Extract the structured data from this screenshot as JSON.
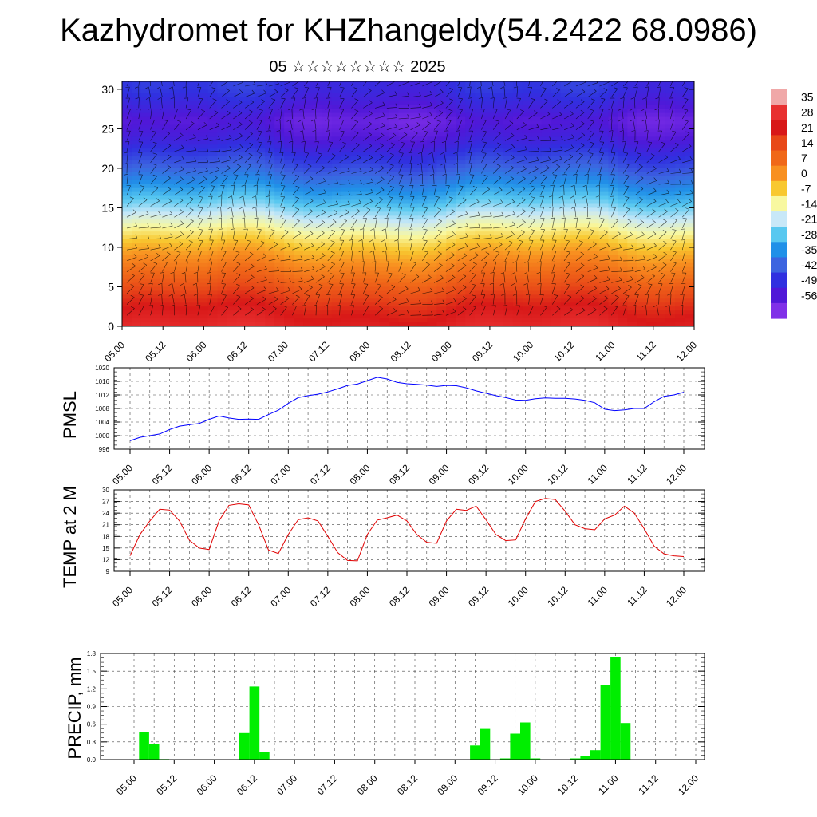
{
  "title": "Kazhydromet for KHZhangeldy(54.2422 68.0986)",
  "subtitle": "05 ☆☆☆☆☆☆☆☆ 2025",
  "colorbar": {
    "labels": [
      "35",
      "28",
      "21",
      "14",
      "7",
      "0",
      "-7",
      "-14",
      "-21",
      "-28",
      "-35",
      "-42",
      "-49",
      "-56"
    ],
    "colors": [
      "#f0a8a8",
      "#e83030",
      "#d81818",
      "#e84818",
      "#f06818",
      "#f89020",
      "#f8c830",
      "#f8f8a0",
      "#c8e8f8",
      "#58c8f0",
      "#2090e8",
      "#3c64e0",
      "#3030e0",
      "#5018d8",
      "#8030e8"
    ]
  },
  "chart_data": [
    {
      "type": "heatmap",
      "name": "upper-air",
      "title": "",
      "xlabel": "",
      "ylabel": "",
      "x_ticks": [
        "05.00",
        "05.12",
        "06.00",
        "06.12",
        "07.00",
        "07.12",
        "08.00",
        "08.12",
        "09.00",
        "09.12",
        "10.00",
        "10.12",
        "11.00",
        "11.12",
        "12.00"
      ],
      "y_ticks": [
        0,
        5,
        10,
        15,
        20,
        25,
        30
      ],
      "ylim": [
        0,
        31
      ],
      "levels": [
        0,
        2,
        4,
        6,
        8,
        10,
        12,
        14,
        16,
        18,
        20,
        22,
        24,
        26,
        28,
        30
      ],
      "profile": [
        28,
        24,
        18,
        11,
        5,
        -2,
        -10,
        -18,
        -26,
        -33,
        -40,
        -46,
        -52,
        -55,
        -50,
        -46
      ]
    },
    {
      "type": "line",
      "name": "pmsl",
      "ylabel": "PMSL",
      "ylim": [
        996,
        1020
      ],
      "y_ticks": [
        996,
        1000,
        1004,
        1008,
        1012,
        1016,
        1020
      ],
      "x_ticks": [
        "05.00",
        "05.12",
        "06.00",
        "06.12",
        "07.00",
        "07.12",
        "08.00",
        "08.12",
        "09.00",
        "09.12",
        "10.00",
        "10.12",
        "11.00",
        "11.12",
        "12.00"
      ],
      "color": "#0000ff",
      "x": [
        0,
        3,
        6,
        9,
        12,
        15,
        18,
        21,
        24,
        27,
        30,
        33,
        36,
        39,
        42,
        45,
        48,
        51,
        54,
        57,
        60,
        63,
        66,
        69,
        72,
        75,
        78,
        81,
        84,
        87,
        90,
        93,
        96,
        99,
        102,
        105,
        108,
        111,
        114,
        117,
        120,
        123,
        126,
        129,
        132,
        135,
        138,
        141,
        144,
        147,
        150,
        153,
        156,
        159,
        162,
        165,
        168
      ],
      "values": [
        998.5,
        999.5,
        1000,
        1000.5,
        1001.8,
        1002.8,
        1003.2,
        1003.6,
        1004.8,
        1005.8,
        1005.2,
        1004.8,
        1004.9,
        1004.8,
        1006.2,
        1007.5,
        1009.5,
        1011.2,
        1011.8,
        1012.2,
        1012.9,
        1013.8,
        1014.8,
        1015.2,
        1016.2,
        1017.2,
        1016.7,
        1015.7,
        1015.3,
        1015.1,
        1014.9,
        1014.5,
        1014.8,
        1014.7,
        1014.1,
        1013.2,
        1012.5,
        1011.8,
        1011.2,
        1010.5,
        1010.4,
        1010.9,
        1011.1,
        1011,
        1011,
        1010.8,
        1010.4,
        1009.7,
        1007.8,
        1007.4,
        1007.6,
        1008,
        1008,
        1010,
        1011.6,
        1012,
        1012.8
      ]
    },
    {
      "type": "line",
      "name": "temp2m",
      "ylabel": "TEMP at 2 M",
      "ylim": [
        9,
        30
      ],
      "y_ticks": [
        9,
        12,
        15,
        18,
        21,
        24,
        27,
        30
      ],
      "x_ticks": [
        "05.00",
        "05.12",
        "06.00",
        "06.12",
        "07.00",
        "07.12",
        "08.00",
        "08.12",
        "09.00",
        "09.12",
        "10.00",
        "10.12",
        "11.00",
        "11.12",
        "12.00"
      ],
      "color": "#e00000",
      "x": [
        0,
        3,
        6,
        9,
        12,
        15,
        18,
        21,
        24,
        27,
        30,
        33,
        36,
        39,
        42,
        45,
        48,
        51,
        54,
        57,
        60,
        63,
        66,
        69,
        72,
        75,
        78,
        81,
        84,
        87,
        90,
        93,
        96,
        99,
        102,
        105,
        108,
        111,
        114,
        117,
        120,
        123,
        126,
        129,
        132,
        135,
        138,
        141,
        144,
        147,
        150,
        153,
        156,
        159,
        162,
        165,
        168
      ],
      "values": [
        13,
        18.5,
        22,
        25,
        24.8,
        22,
        17,
        15,
        14.6,
        22,
        26,
        26.4,
        26.1,
        21,
        14.5,
        13.6,
        18.5,
        22.3,
        22.8,
        22,
        18,
        13.8,
        11.8,
        11.7,
        18.5,
        22.2,
        22.8,
        23.5,
        22,
        18.5,
        16.5,
        16.2,
        22,
        25,
        24.7,
        25.8,
        22.3,
        18.5,
        16.9,
        17.1,
        22.5,
        27,
        27.8,
        27.5,
        24.5,
        21,
        20,
        19.7,
        22.5,
        23.5,
        25.8,
        24,
        20,
        15.5,
        13.5,
        13,
        12.8
      ]
    },
    {
      "type": "bar",
      "name": "precip",
      "ylabel": "PRECIP, mm",
      "ylim": [
        0,
        1.8
      ],
      "y_ticks": [
        "0.0",
        "0.3",
        "0.6",
        "0.9",
        "1.2",
        "1.5",
        "1.8"
      ],
      "x_ticks": [
        "05.00",
        "05.12",
        "06.00",
        "06.12",
        "07.00",
        "07.12",
        "08.00",
        "08.12",
        "09.00",
        "09.12",
        "10.00",
        "10.12",
        "11.00",
        "11.12",
        "12.00"
      ],
      "color": "#00ee00",
      "x": [
        3,
        6,
        9,
        33,
        36,
        39,
        102,
        105,
        111,
        114,
        117,
        120,
        132,
        135,
        138,
        141,
        144
      ],
      "values": [
        0.47,
        0.26,
        0.01,
        0.45,
        1.24,
        0.13,
        0.24,
        0.52,
        0.02,
        0.44,
        0.63,
        0.02,
        0.02,
        0.06,
        0.16,
        1.26,
        1.74
      ],
      "tail": {
        "x": 147,
        "value": 0.62
      }
    }
  ]
}
